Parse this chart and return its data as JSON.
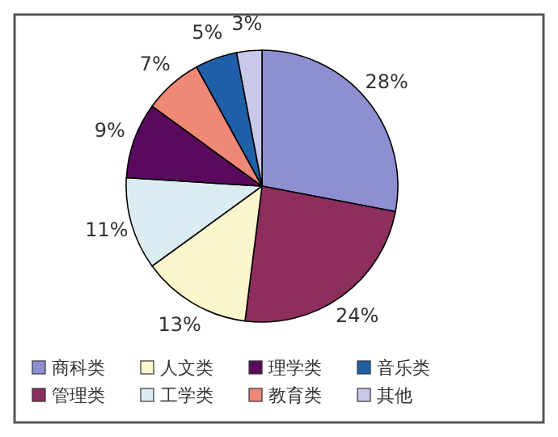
{
  "chart_data": {
    "type": "pie",
    "categories": [
      "商科类",
      "管理类",
      "人文类",
      "工学类",
      "理学类",
      "教育类",
      "音乐类",
      "其他"
    ],
    "values": [
      28,
      24,
      13,
      11,
      9,
      7,
      5,
      3
    ],
    "value_labels": [
      "28%",
      "24%",
      "13%",
      "11%",
      "9%",
      "7%",
      "5%",
      "3%"
    ],
    "colors": [
      "#8e8fd1",
      "#8e2e5e",
      "#fbf7cc",
      "#dcecf3",
      "#5a0a5c",
      "#f08878",
      "#1f5fa8",
      "#c8c8e8"
    ],
    "legend": "bottom"
  }
}
